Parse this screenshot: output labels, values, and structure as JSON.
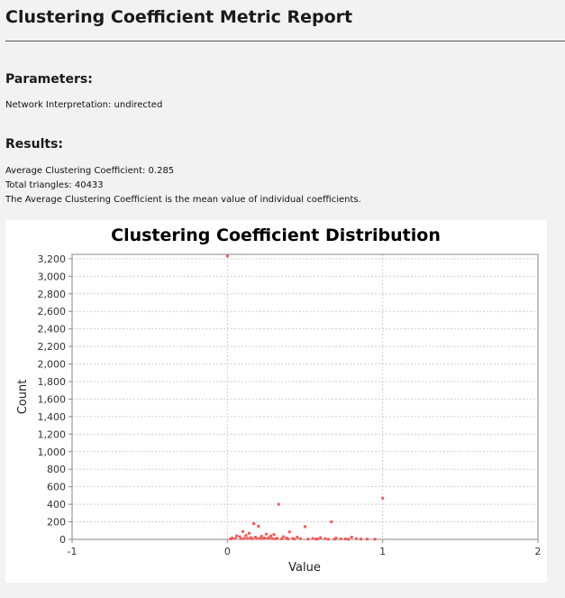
{
  "report": {
    "title": "Clustering Coefficient Metric Report",
    "parameters_heading": "Parameters:",
    "network_interpretation": "Network Interpretation: undirected",
    "results_heading": "Results:",
    "average_clustering": "Average Clustering Coefficient: 0.285",
    "total_triangles": "Total triangles: 40433",
    "description": "The Average Clustering Coefficient is the mean value of individual coefficients."
  },
  "chart_data": {
    "type": "scatter",
    "title": "Clustering Coefficient Distribution",
    "xlabel": "Value",
    "ylabel": "Count",
    "xlim": [
      -1,
      2
    ],
    "ylim": [
      0,
      3250
    ],
    "x_ticks": [
      -1,
      0,
      1,
      2
    ],
    "x_tick_labels": [
      "-1",
      "0",
      "1",
      "2"
    ],
    "y_ticks": [
      0,
      200,
      400,
      600,
      800,
      1000,
      1200,
      1400,
      1600,
      1800,
      2000,
      2200,
      2400,
      2600,
      2800,
      3000,
      3200
    ],
    "y_tick_labels": [
      "0",
      "200",
      "400",
      "600",
      "800",
      "1,000",
      "1,200",
      "1,400",
      "1,600",
      "1,800",
      "2,000",
      "2,200",
      "2,400",
      "2,600",
      "2,800",
      "3,000",
      "3,200"
    ],
    "grid": true,
    "point_color": "#f05a5a",
    "points": [
      [
        0,
        3230
      ],
      [
        1,
        470
      ],
      [
        0.33,
        400
      ],
      [
        0.67,
        200
      ],
      [
        0.5,
        145
      ],
      [
        0.17,
        180
      ],
      [
        0.2,
        150
      ],
      [
        0.4,
        85
      ],
      [
        0.1,
        90
      ],
      [
        0.14,
        70
      ],
      [
        0.25,
        60
      ],
      [
        0.3,
        55
      ],
      [
        0.06,
        40
      ],
      [
        0.08,
        30
      ],
      [
        0.12,
        45
      ],
      [
        0.22,
        35
      ],
      [
        0.28,
        40
      ],
      [
        0.36,
        30
      ],
      [
        0.45,
        25
      ],
      [
        0.6,
        20
      ],
      [
        0.7,
        15
      ],
      [
        0.8,
        25
      ],
      [
        0.03,
        15
      ],
      [
        0.05,
        10
      ],
      [
        0.15,
        20
      ],
      [
        0.18,
        25
      ],
      [
        0.24,
        15
      ],
      [
        0.27,
        20
      ],
      [
        0.32,
        12
      ],
      [
        0.38,
        15
      ],
      [
        0.42,
        10
      ],
      [
        0.47,
        8
      ],
      [
        0.55,
        10
      ],
      [
        0.58,
        6
      ],
      [
        0.63,
        8
      ],
      [
        0.73,
        6
      ],
      [
        0.76,
        5
      ],
      [
        0.83,
        8
      ],
      [
        0.86,
        4
      ],
      [
        0.9,
        3
      ],
      [
        0.95,
        2
      ],
      [
        0.02,
        5
      ],
      [
        0.09,
        8
      ],
      [
        0.11,
        12
      ],
      [
        0.13,
        10
      ],
      [
        0.16,
        8
      ],
      [
        0.19,
        10
      ],
      [
        0.21,
        12
      ],
      [
        0.23,
        9
      ],
      [
        0.26,
        11
      ],
      [
        0.29,
        9
      ],
      [
        0.31,
        7
      ],
      [
        0.35,
        6
      ],
      [
        0.39,
        5
      ],
      [
        0.43,
        4
      ],
      [
        0.52,
        3
      ],
      [
        0.57,
        3
      ],
      [
        0.65,
        2
      ],
      [
        0.69,
        3
      ],
      [
        0.78,
        2
      ]
    ]
  }
}
